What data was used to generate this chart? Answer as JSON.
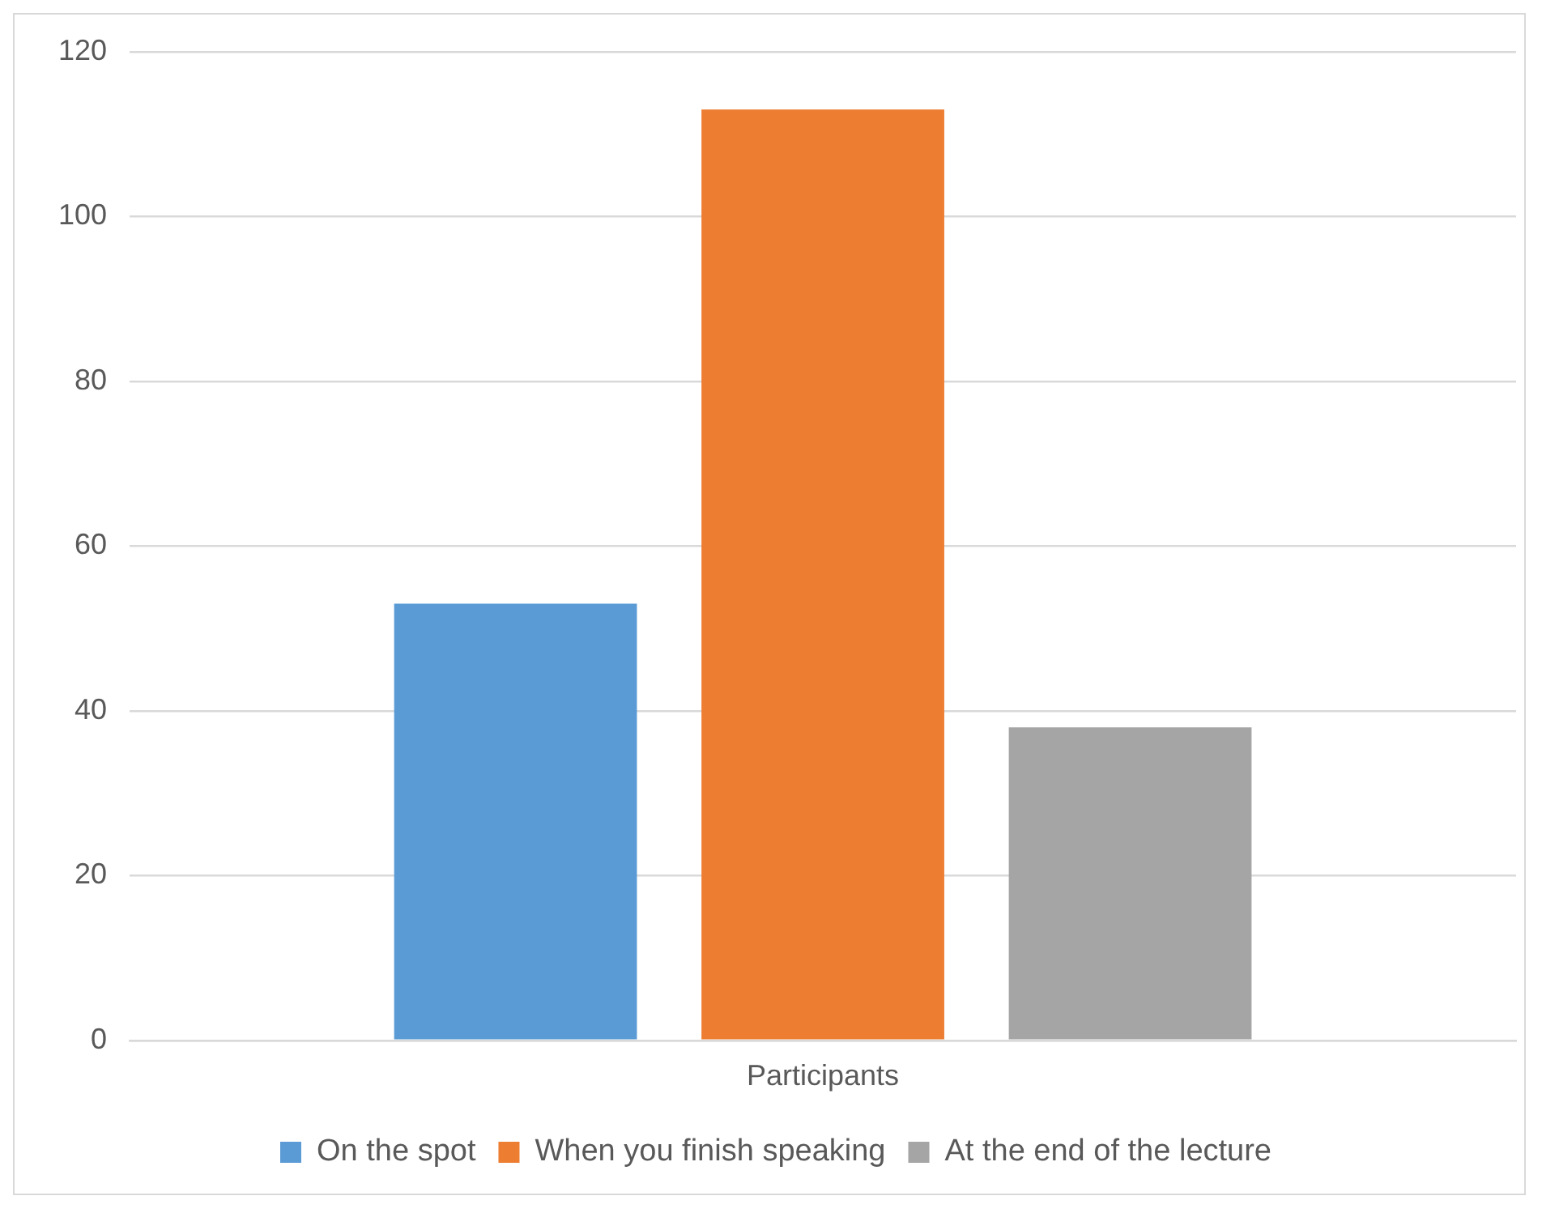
{
  "chart_data": {
    "type": "bar",
    "categories": [
      "Participants"
    ],
    "series": [
      {
        "name": "On the spot",
        "color": "#5b9bd5",
        "values": [
          53
        ]
      },
      {
        "name": "When you finish speaking",
        "color": "#ed7d31",
        "values": [
          113
        ]
      },
      {
        "name": "At the end of the lecture",
        "color": "#a5a5a5",
        "values": [
          38
        ]
      }
    ],
    "ylim": [
      0,
      120
    ],
    "yticks": [
      0,
      20,
      40,
      60,
      80,
      100,
      120
    ],
    "grid": "y",
    "legend": "bottom"
  }
}
